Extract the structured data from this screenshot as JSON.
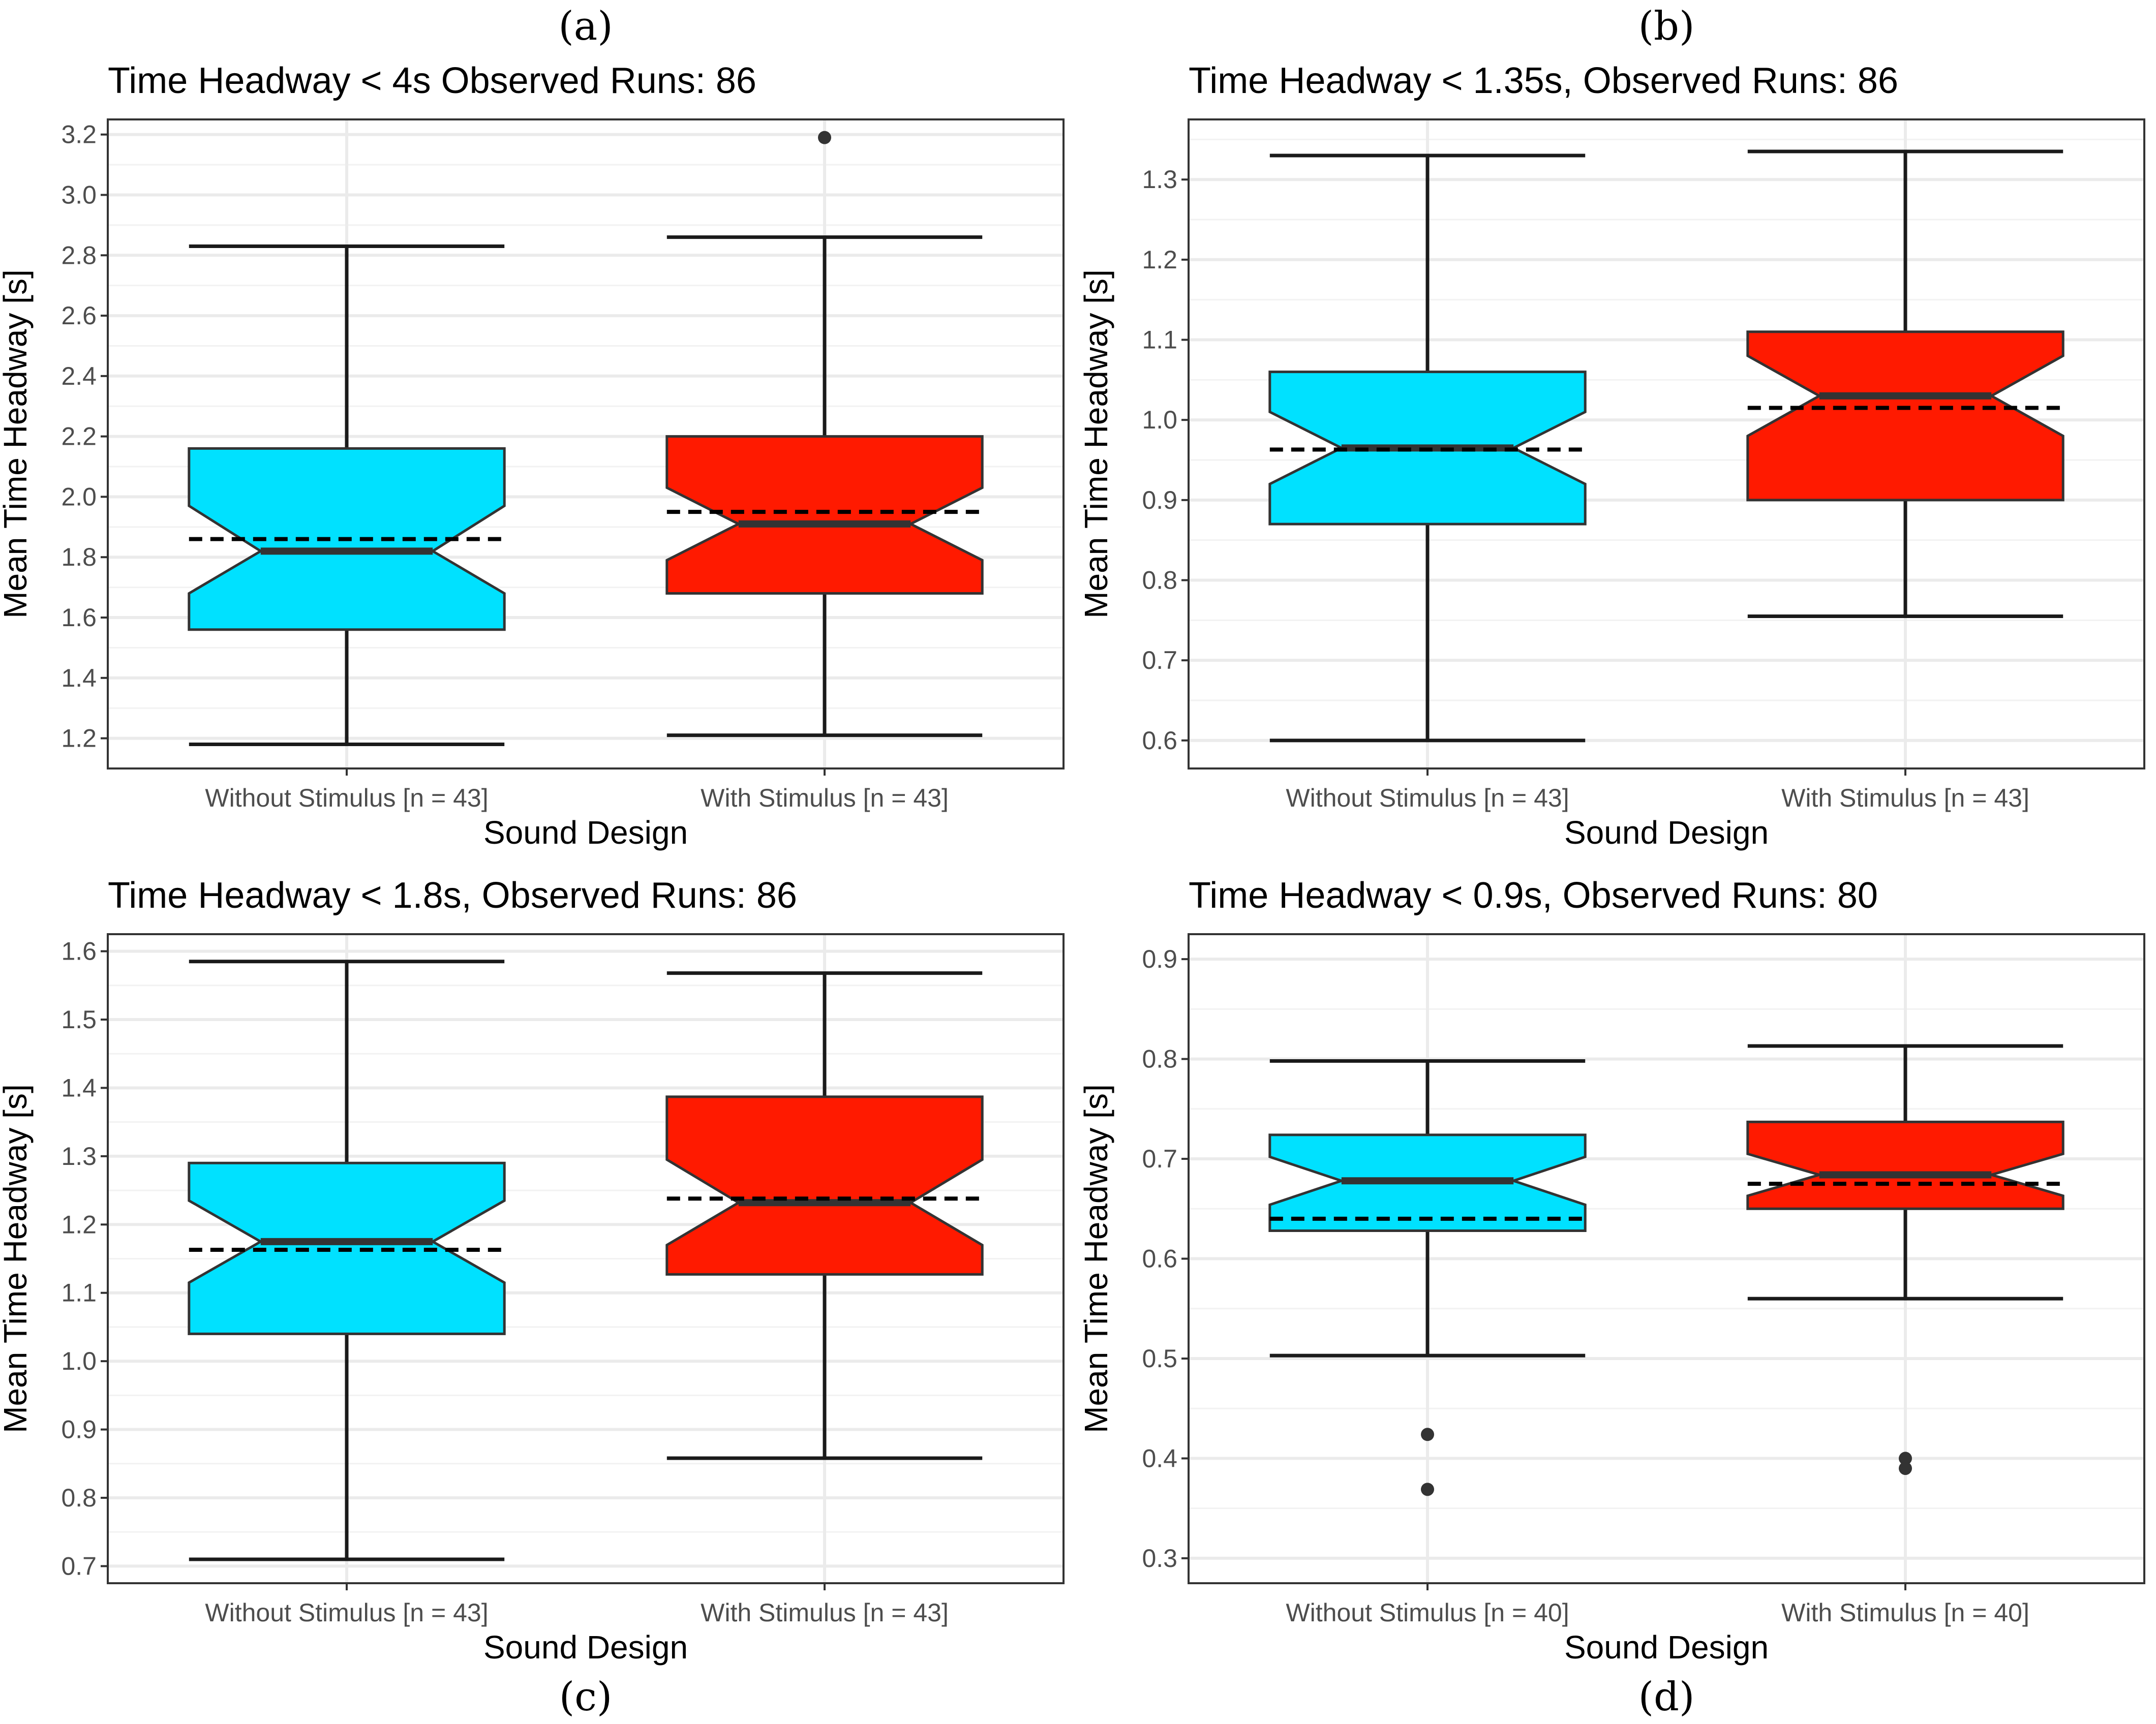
{
  "colors": {
    "without": "#00e1ff",
    "with": "#ff1a00"
  },
  "chart_data": [
    {
      "panel": "(a)",
      "type": "boxplot",
      "title": "Time Headway < 4s  Observed Runs: 86",
      "xlabel": "Sound Design",
      "ylabel": "Mean Time Headway [s]",
      "ylim": [
        1.1,
        3.25
      ],
      "yticks": [
        1.2,
        1.4,
        1.6,
        1.8,
        2.0,
        2.2,
        2.4,
        2.6,
        2.8,
        3.0,
        3.2
      ],
      "ytick_labels": [
        "1.2",
        "1.4",
        "1.6",
        "1.8",
        "2.0",
        "2.2",
        "2.4",
        "2.6",
        "2.8",
        "3.0",
        "3.2"
      ],
      "categories": [
        "Without Stimulus [n = 43]",
        "With Stimulus [n = 43]"
      ],
      "boxes": [
        {
          "series": "Without Stimulus",
          "whisker_low": 1.18,
          "q1": 1.56,
          "notch_low": 1.68,
          "median": 1.82,
          "notch_high": 1.97,
          "q3": 2.16,
          "whisker_high": 2.83,
          "mean": 1.86,
          "outliers": []
        },
        {
          "series": "With Stimulus",
          "whisker_low": 1.21,
          "q1": 1.68,
          "notch_low": 1.79,
          "median": 1.91,
          "notch_high": 2.03,
          "q3": 2.2,
          "whisker_high": 2.86,
          "mean": 1.95,
          "outliers": [
            3.19
          ]
        }
      ]
    },
    {
      "panel": "(b)",
      "type": "boxplot",
      "title": "Time Headway < 1.35s,  Observed Runs: 86",
      "xlabel": "Sound Design",
      "ylabel": "Mean Time Headway [s]",
      "ylim": [
        0.565,
        1.375
      ],
      "yticks": [
        0.6,
        0.7,
        0.8,
        0.9,
        1.0,
        1.1,
        1.2,
        1.3
      ],
      "ytick_labels": [
        "0.6",
        "0.7",
        "0.8",
        "0.9",
        "1.0",
        "1.1",
        "1.2",
        "1.3"
      ],
      "categories": [
        "Without Stimulus [n = 43]",
        "With Stimulus [n = 43]"
      ],
      "boxes": [
        {
          "series": "Without Stimulus",
          "whisker_low": 0.6,
          "q1": 0.87,
          "notch_low": 0.92,
          "median": 0.965,
          "notch_high": 1.01,
          "q3": 1.06,
          "whisker_high": 1.33,
          "mean": 0.963,
          "outliers": []
        },
        {
          "series": "With Stimulus",
          "whisker_low": 0.755,
          "q1": 0.9,
          "notch_low": 0.98,
          "median": 1.03,
          "notch_high": 1.08,
          "q3": 1.11,
          "whisker_high": 1.335,
          "mean": 1.015,
          "outliers": []
        }
      ]
    },
    {
      "panel": "(c)",
      "type": "boxplot",
      "title": "Time Headway < 1.8s,  Observed Runs: 86",
      "xlabel": "Sound Design",
      "ylabel": "Mean Time Headway [s]",
      "ylim": [
        0.675,
        1.625
      ],
      "yticks": [
        0.7,
        0.8,
        0.9,
        1.0,
        1.1,
        1.2,
        1.3,
        1.4,
        1.5,
        1.6
      ],
      "ytick_labels": [
        "0.7",
        "0.8",
        "0.9",
        "1.0",
        "1.1",
        "1.2",
        "1.3",
        "1.4",
        "1.5",
        "1.6"
      ],
      "categories": [
        "Without Stimulus [n = 43]",
        "With Stimulus [n = 43]"
      ],
      "boxes": [
        {
          "series": "Without Stimulus",
          "whisker_low": 0.71,
          "q1": 1.04,
          "notch_low": 1.115,
          "median": 1.175,
          "notch_high": 1.235,
          "q3": 1.29,
          "whisker_high": 1.585,
          "mean": 1.163,
          "outliers": []
        },
        {
          "series": "With Stimulus",
          "whisker_low": 0.858,
          "q1": 1.127,
          "notch_low": 1.17,
          "median": 1.232,
          "notch_high": 1.295,
          "q3": 1.387,
          "whisker_high": 1.568,
          "mean": 1.238,
          "outliers": []
        }
      ]
    },
    {
      "panel": "(d)",
      "type": "boxplot",
      "title": "Time Headway < 0.9s,  Observed Runs: 80",
      "xlabel": "Sound Design",
      "ylabel": "Mean Time Headway [s]",
      "ylim": [
        0.275,
        0.925
      ],
      "yticks": [
        0.3,
        0.4,
        0.5,
        0.6,
        0.7,
        0.8,
        0.9
      ],
      "ytick_labels": [
        "0.3",
        "0.4",
        "0.5",
        "0.6",
        "0.7",
        "0.8",
        "0.9"
      ],
      "categories": [
        "Without Stimulus [n = 40]",
        "With Stimulus [n = 40]"
      ],
      "boxes": [
        {
          "series": "Without Stimulus",
          "whisker_low": 0.503,
          "q1": 0.628,
          "notch_low": 0.654,
          "median": 0.678,
          "notch_high": 0.702,
          "q3": 0.724,
          "whisker_high": 0.798,
          "mean": 0.64,
          "outliers": [
            0.424,
            0.369
          ]
        },
        {
          "series": "With Stimulus",
          "whisker_low": 0.56,
          "q1": 0.65,
          "notch_low": 0.663,
          "median": 0.684,
          "notch_high": 0.705,
          "q3": 0.737,
          "whisker_high": 0.813,
          "mean": 0.675,
          "outliers": [
            0.4,
            0.39
          ]
        }
      ]
    }
  ]
}
